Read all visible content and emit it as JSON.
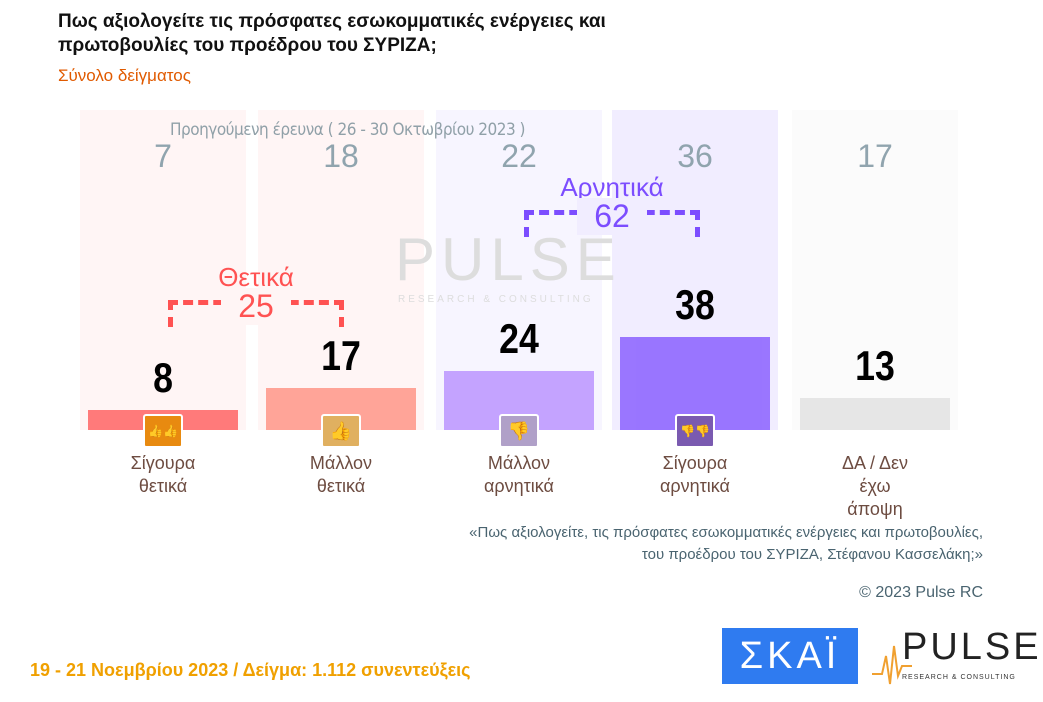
{
  "title": "Πως αξιολογείτε τις πρόσφατες εσωκομματικές ενέργειες και πρωτοβουλίες του προέδρου του ΣΥΡΙΖΑ;",
  "subtitle": "Σύνολο δείγματος",
  "chart_data": {
    "type": "bar",
    "categories": [
      "Σίγουρα θετικά",
      "Μάλλον θετικά",
      "Μάλλον αρνητικά",
      "Σίγουρα αρνητικά",
      "ΔΑ / Δεν έχω άποψη"
    ],
    "values": [
      8,
      17,
      24,
      38,
      13
    ],
    "previous_label": "Προηγούμενη έρευνα  ( 26 - 30 Οκτωβρίου 2023 )",
    "previous_values": [
      7,
      18,
      22,
      36,
      17
    ],
    "groups": [
      {
        "label": "Θετικά",
        "value": "25",
        "color": "#ff5252"
      },
      {
        "label": "Αρνητικά",
        "value": "62",
        "color": "#7c4dff"
      }
    ],
    "colors": [
      "#ff5252",
      "#ff8a7a",
      "#b388ff",
      "#7c4dff",
      "#e0e0e0"
    ],
    "icons": [
      "double-thumbs-up-icon",
      "thumbs-up-icon",
      "thumbs-down-icon",
      "double-thumbs-down-icon",
      ""
    ]
  },
  "quote": [
    "«Πως αξιολογείτε, τις πρόσφατες εσωκομματικές ενέργειες και πρωτοβουλίες,",
    "του προέδρου του ΣΥΡΙΖΑ, Στέφανου Κασσελάκη;»"
  ],
  "copyright": "© 2023 Pulse RC",
  "footer": "19 - 21  Νοεμβρίου  2023  /  Δείγμα:  1.112 συνεντεύξεις",
  "logos": {
    "skai": "ΣΚΑΪ",
    "pulse": "PULSE",
    "pulse_sub": "RESEARCH & CONSULTING",
    "watermark": "PULSE"
  }
}
